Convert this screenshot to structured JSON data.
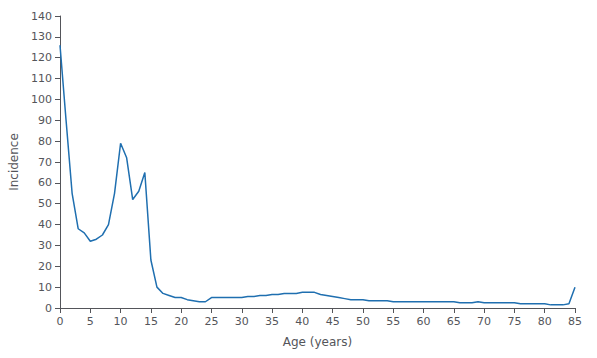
{
  "chart_data": {
    "type": "line",
    "xlabel": "Age (years)",
    "ylabel": "Incidence",
    "x": [
      0,
      1,
      2,
      3,
      4,
      5,
      6,
      7,
      8,
      9,
      10,
      11,
      12,
      13,
      14,
      15,
      16,
      17,
      18,
      19,
      20,
      21,
      22,
      23,
      24,
      25,
      26,
      27,
      28,
      29,
      30,
      31,
      32,
      33,
      34,
      35,
      36,
      37,
      38,
      39,
      40,
      41,
      42,
      43,
      44,
      45,
      46,
      47,
      48,
      49,
      50,
      51,
      52,
      53,
      54,
      55,
      56,
      57,
      58,
      59,
      60,
      61,
      62,
      63,
      64,
      65,
      66,
      67,
      68,
      69,
      70,
      71,
      72,
      73,
      74,
      75,
      76,
      77,
      78,
      79,
      80,
      81,
      82,
      83,
      84,
      85
    ],
    "values": [
      126,
      90,
      55,
      38,
      36,
      32,
      33,
      35,
      40,
      55,
      79,
      72,
      52,
      56,
      65,
      23,
      10,
      7,
      6,
      5,
      5,
      4,
      3.5,
      3,
      3,
      5,
      5,
      5,
      5,
      5,
      5,
      5.5,
      5.5,
      6,
      6,
      6.5,
      6.5,
      7,
      7,
      7,
      7.5,
      7.5,
      7.5,
      6.5,
      6,
      5.5,
      5,
      4.5,
      4,
      4,
      4,
      3.5,
      3.5,
      3.5,
      3.5,
      3,
      3,
      3,
      3,
      3,
      3,
      3,
      3,
      3,
      3,
      3,
      2.5,
      2.5,
      2.5,
      3,
      2.5,
      2.5,
      2.5,
      2.5,
      2.5,
      2.5,
      2,
      2,
      2,
      2,
      2,
      1.5,
      1.5,
      1.5,
      2,
      10
    ],
    "color": "#1f6fb0",
    "xlim": [
      0,
      85
    ],
    "xticks": [
      0,
      5,
      10,
      15,
      20,
      25,
      30,
      35,
      40,
      45,
      50,
      55,
      60,
      65,
      70,
      75,
      80,
      85
    ],
    "ylim": [
      0,
      140
    ],
    "yticks": [
      0,
      10,
      20,
      30,
      40,
      50,
      60,
      70,
      80,
      90,
      100,
      110,
      120,
      130,
      140
    ],
    "grid": false
  }
}
